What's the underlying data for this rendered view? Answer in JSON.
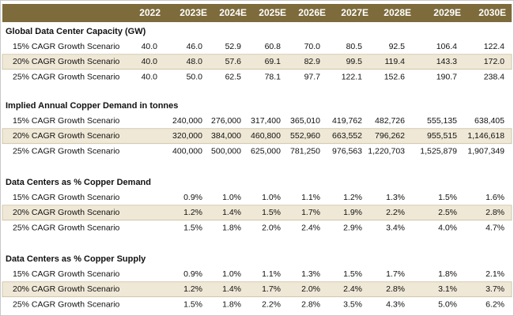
{
  "header": {
    "columns": [
      "2022",
      "2023E",
      "2024E",
      "2025E",
      "2026E",
      "2027E",
      "2028E",
      "2029E",
      "2030E"
    ]
  },
  "sections": [
    {
      "title": "Global Data Center Capacity (GW)",
      "rows": [
        {
          "label": "15% CAGR Growth Scenario",
          "values": [
            "40.0",
            "46.0",
            "52.9",
            "60.8",
            "70.0",
            "80.5",
            "92.5",
            "106.4",
            "122.4"
          ]
        },
        {
          "label": "20% CAGR Growth Scenario",
          "values": [
            "40.0",
            "48.0",
            "57.6",
            "69.1",
            "82.9",
            "99.5",
            "119.4",
            "143.3",
            "172.0"
          ]
        },
        {
          "label": "25% CAGR Growth Scenario",
          "values": [
            "40.0",
            "50.0",
            "62.5",
            "78.1",
            "97.7",
            "122.1",
            "152.6",
            "190.7",
            "238.4"
          ]
        }
      ]
    },
    {
      "title": "Implied Annual Copper Demand in tonnes",
      "rows": [
        {
          "label": "15% CAGR Growth Scenario",
          "values": [
            null,
            "240,000",
            "276,000",
            "317,400",
            "365,010",
            "419,762",
            "482,726",
            "555,135",
            "638,405"
          ]
        },
        {
          "label": "20% CAGR Growth Scenario",
          "values": [
            null,
            "320,000",
            "384,000",
            "460,800",
            "552,960",
            "663,552",
            "796,262",
            "955,515",
            "1,146,618"
          ]
        },
        {
          "label": "25% CAGR Growth Scenario",
          "values": [
            null,
            "400,000",
            "500,000",
            "625,000",
            "781,250",
            "976,563",
            "1,220,703",
            "1,525,879",
            "1,907,349"
          ]
        }
      ]
    },
    {
      "title": "Data Centers as % Copper Demand",
      "rows": [
        {
          "label": "15% CAGR Growth Scenario",
          "values": [
            null,
            "0.9%",
            "1.0%",
            "1.0%",
            "1.1%",
            "1.2%",
            "1.3%",
            "1.5%",
            "1.6%"
          ]
        },
        {
          "label": "20% CAGR Growth Scenario",
          "values": [
            null,
            "1.2%",
            "1.4%",
            "1.5%",
            "1.7%",
            "1.9%",
            "2.2%",
            "2.5%",
            "2.8%"
          ]
        },
        {
          "label": "25% CAGR Growth Scenario",
          "values": [
            null,
            "1.5%",
            "1.8%",
            "2.0%",
            "2.4%",
            "2.9%",
            "3.4%",
            "4.0%",
            "4.7%"
          ]
        }
      ]
    },
    {
      "title": "Data Centers as % Copper Supply",
      "rows": [
        {
          "label": "15% CAGR Growth Scenario",
          "values": [
            null,
            "0.9%",
            "1.0%",
            "1.1%",
            "1.3%",
            "1.5%",
            "1.7%",
            "1.8%",
            "2.1%"
          ]
        },
        {
          "label": "20% CAGR Growth Scenario",
          "values": [
            null,
            "1.2%",
            "1.4%",
            "1.7%",
            "2.0%",
            "2.4%",
            "2.8%",
            "3.1%",
            "3.7%"
          ]
        },
        {
          "label": "25% CAGR Growth Scenario",
          "values": [
            null,
            "1.5%",
            "1.8%",
            "2.2%",
            "2.8%",
            "3.5%",
            "4.3%",
            "5.0%",
            "6.2%"
          ]
        }
      ]
    }
  ]
}
